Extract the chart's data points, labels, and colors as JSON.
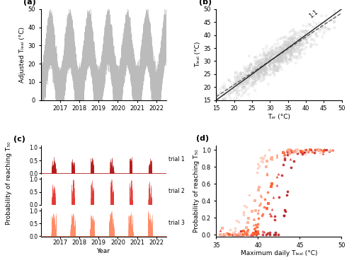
{
  "panel_a": {
    "title": "(a)",
    "ylabel": "Adjusted Tₗₑₐₗ (°C)",
    "ylim": [
      0,
      50
    ],
    "yticks": [
      0,
      10,
      20,
      30,
      40,
      50
    ],
    "color": "#bbbbbb",
    "x_start": 2016.0,
    "x_end": 2022.5,
    "xticks": [
      2017,
      2018,
      2019,
      2020,
      2021,
      2022
    ]
  },
  "panel_b": {
    "title": "(b)",
    "xlabel": "Tₐᵣ (°C)",
    "ylabel": "Tₗₑₐₗ (°C)",
    "xlim": [
      15,
      50
    ],
    "ylim": [
      15,
      50
    ],
    "xticks": [
      15,
      20,
      25,
      30,
      35,
      40,
      45,
      50
    ],
    "yticks": [
      15,
      20,
      25,
      30,
      35,
      40,
      45,
      50
    ],
    "scatter_color": "#c8c8c8",
    "line11_color": "#222222",
    "reg_color": "#666666",
    "label_11": "1:1"
  },
  "panel_c": {
    "title": "(c)",
    "ylabel": "Probability of reaching T₅₀",
    "xlabel": "Year",
    "ylim": [
      0.0,
      1.0
    ],
    "yticks": [
      0.0,
      0.5,
      1.0
    ],
    "x_start": 2016.0,
    "x_end": 2022.5,
    "xticks": [
      2017,
      2018,
      2019,
      2020,
      2021,
      2022
    ],
    "trial_colors": [
      "#b71c1c",
      "#e53935",
      "#ff8a65"
    ],
    "trial_labels": [
      "trial 1",
      "trial 2",
      "trial 3"
    ]
  },
  "panel_d": {
    "title": "(d)",
    "xlabel": "Maximum daily Tₗₑₐₗ (°C)",
    "ylabel": "Probability of reaching T₅₀",
    "xlim": [
      35,
      50
    ],
    "ylim": [
      -0.02,
      1.05
    ],
    "xticks": [
      35,
      40,
      45,
      50
    ],
    "yticks": [
      0.0,
      0.2,
      0.4,
      0.6,
      0.8,
      1.0
    ],
    "colors": [
      "#b71c1c",
      "#c62828",
      "#e53935",
      "#ff5722",
      "#ff7043",
      "#ff8a65",
      "#ffab91",
      "#ffccbc"
    ],
    "markers": [
      "o",
      "o",
      "^",
      "s",
      "o",
      "^",
      "s",
      "o"
    ],
    "x50_vals": [
      43.5,
      42.5,
      42.0,
      41.5,
      41.0,
      40.5,
      40.0,
      39.0
    ],
    "k_vals": [
      3.0,
      2.8,
      2.5,
      2.2,
      2.0,
      1.8,
      1.6,
      1.4
    ]
  }
}
